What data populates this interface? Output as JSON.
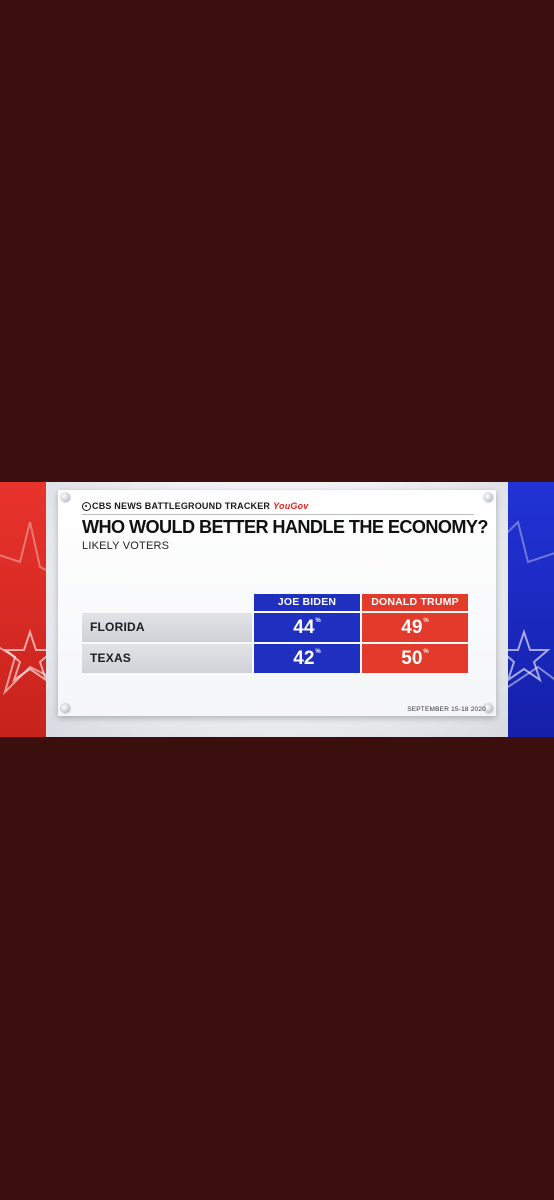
{
  "brand": {
    "network": "CBS NEWS BATTLEGROUND TRACKER",
    "partner": "YouGov"
  },
  "chart_data": {
    "type": "table",
    "title": "WHO WOULD BETTER HANDLE THE ECONOMY?",
    "subtitle": "LIKELY VOTERS",
    "columns": [
      "JOE BIDEN",
      "DONALD TRUMP"
    ],
    "rows": [
      {
        "label": "FLORIDA",
        "values": [
          44,
          49
        ]
      },
      {
        "label": "TEXAS",
        "values": [
          42,
          50
        ]
      }
    ],
    "unit": "%",
    "series_colors": [
      "#1f2fbf",
      "#e23a2b"
    ]
  },
  "footer": {
    "date": "SEPTEMBER 15-18 2020"
  }
}
